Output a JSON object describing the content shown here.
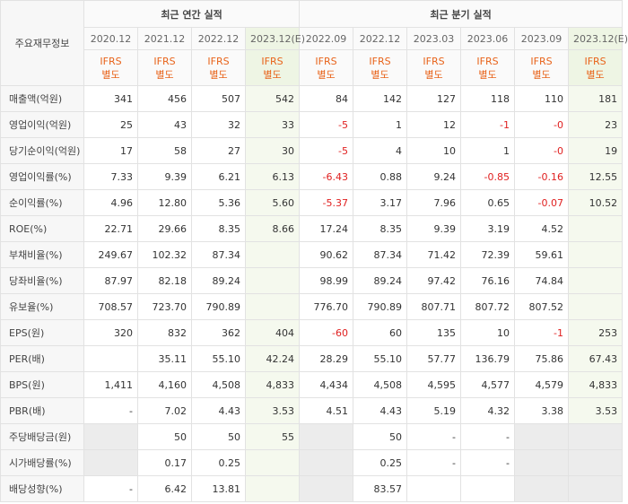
{
  "table": {
    "corner": "주요재무정보",
    "groups": [
      "최근 연간 실적",
      "최근 분기 실적"
    ],
    "periods": [
      "2020.12",
      "2021.12",
      "2022.12",
      "2023.12(E)",
      "2022.09",
      "2022.12",
      "2023.03",
      "2023.06",
      "2023.09",
      "2023.12(E)"
    ],
    "standards": [
      [
        "IFRS",
        "별도"
      ],
      [
        "IFRS",
        "별도"
      ],
      [
        "IFRS",
        "별도"
      ],
      [
        "IFRS",
        "별도"
      ],
      [
        "IFRS",
        "별도"
      ],
      [
        "IFRS",
        "별도"
      ],
      [
        "IFRS",
        "별도"
      ],
      [
        "IFRS",
        "별도"
      ],
      [
        "IFRS",
        "별도"
      ],
      [
        "IFRS",
        "별도"
      ]
    ],
    "rows": [
      {
        "label": "매출액(억원)",
        "values": [
          "341",
          "456",
          "507",
          "542",
          "84",
          "142",
          "127",
          "118",
          "110",
          "181"
        ]
      },
      {
        "label": "영업이익(억원)",
        "values": [
          "25",
          "43",
          "32",
          "33",
          "-5",
          "1",
          "12",
          "-1",
          "-0",
          "23"
        ]
      },
      {
        "label": "당기순이익(억원)",
        "values": [
          "17",
          "58",
          "27",
          "30",
          "-5",
          "4",
          "10",
          "1",
          "-0",
          "19"
        ]
      },
      {
        "label": "영업이익률(%)",
        "values": [
          "7.33",
          "9.39",
          "6.21",
          "6.13",
          "-6.43",
          "0.88",
          "9.24",
          "-0.85",
          "-0.16",
          "12.55"
        ]
      },
      {
        "label": "순이익률(%)",
        "values": [
          "4.96",
          "12.80",
          "5.36",
          "5.60",
          "-5.37",
          "3.17",
          "7.96",
          "0.65",
          "-0.07",
          "10.52"
        ]
      },
      {
        "label": "ROE(%)",
        "values": [
          "22.71",
          "29.66",
          "8.35",
          "8.66",
          "17.24",
          "8.35",
          "9.39",
          "3.19",
          "4.52",
          null
        ]
      },
      {
        "label": "부채비율(%)",
        "values": [
          "249.67",
          "102.32",
          "87.34",
          null,
          "90.62",
          "87.34",
          "71.42",
          "72.39",
          "59.61",
          null
        ]
      },
      {
        "label": "당좌비율(%)",
        "values": [
          "87.97",
          "82.18",
          "89.24",
          null,
          "98.99",
          "89.24",
          "97.42",
          "76.16",
          "74.84",
          null
        ]
      },
      {
        "label": "유보율(%)",
        "values": [
          "708.57",
          "723.70",
          "790.89",
          null,
          "776.70",
          "790.89",
          "807.71",
          "807.72",
          "807.52",
          null
        ]
      },
      {
        "label": "EPS(원)",
        "values": [
          "320",
          "832",
          "362",
          "404",
          "-60",
          "60",
          "135",
          "10",
          "-1",
          "253"
        ]
      },
      {
        "label": "PER(배)",
        "values": [
          null,
          "35.11",
          "55.10",
          "42.24",
          "28.29",
          "55.10",
          "57.77",
          "136.79",
          "75.86",
          "67.43"
        ]
      },
      {
        "label": "BPS(원)",
        "values": [
          "1,411",
          "4,160",
          "4,508",
          "4,833",
          "4,434",
          "4,508",
          "4,595",
          "4,577",
          "4,579",
          "4,833"
        ]
      },
      {
        "label": "PBR(배)",
        "values": [
          "-",
          "7.02",
          "4.43",
          "3.53",
          "4.51",
          "4.43",
          "5.19",
          "4.32",
          "3.38",
          "3.53"
        ]
      },
      {
        "label": "주당배당금(원)",
        "values": [
          null,
          "50",
          "50",
          "55",
          null,
          "50",
          "-",
          "-",
          null,
          null
        ]
      },
      {
        "label": "시가배당률(%)",
        "values": [
          null,
          "0.17",
          "0.25",
          null,
          null,
          "0.25",
          "-",
          "-",
          null,
          null
        ]
      },
      {
        "label": "배당성향(%)",
        "values": [
          "-",
          "6.42",
          "13.81",
          null,
          null,
          "83.57",
          null,
          null,
          null,
          null
        ]
      }
    ]
  }
}
